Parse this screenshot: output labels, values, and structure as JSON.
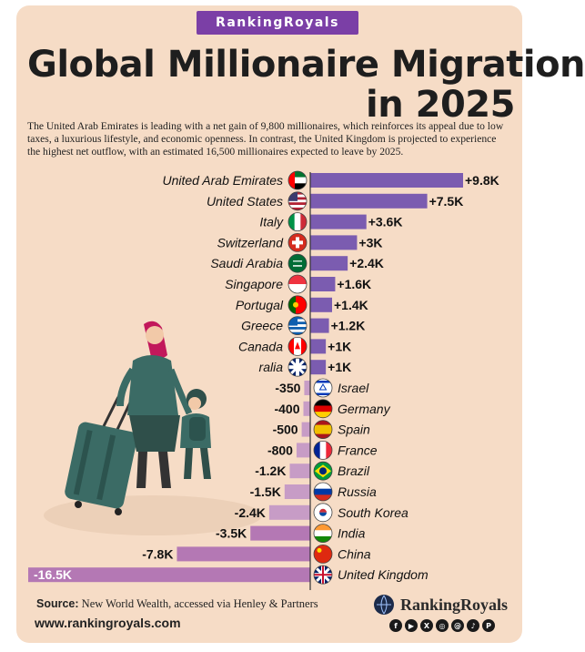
{
  "brand_badge": "RankingRoyals",
  "title_line_1": "Global Millionaire Migration",
  "title_line_2": "in 2025",
  "intro": "The United Arab Emirates is leading with a net gain of 9,800 millionaires, which reinforces its appeal due to low taxes, a luxurious lifestyle, and economic openness. In contrast, the United Kingdom is projected to experience the highest net outflow, with an estimated 16,500 millionaires expected to leave by 2025.",
  "chart_data": {
    "type": "bar",
    "orientation": "horizontal",
    "title": "Global Millionaire Migration in 2025",
    "categories": [
      "United Arab Emirates",
      "United States",
      "Italy",
      "Switzerland",
      "Saudi Arabia",
      "Singapore",
      "Portugal",
      "Greece",
      "Canada",
      "Australia",
      "Israel",
      "Germany",
      "Spain",
      "France",
      "Brazil",
      "Russia",
      "South Korea",
      "India",
      "China",
      "United Kingdom"
    ],
    "values": [
      9800,
      7500,
      3600,
      3000,
      2400,
      1600,
      1400,
      1200,
      1000,
      1000,
      -350,
      -400,
      -500,
      -800,
      -1200,
      -1500,
      -2400,
      -3500,
      -7800,
      -16500
    ],
    "value_labels": [
      "+9.8K",
      "+7.5K",
      "+3.6K",
      "+3K",
      "+2.4K",
      "+1.6K",
      "+1.4K",
      "+1.2K",
      "+1K",
      "+1K",
      "-350",
      "-400",
      "-500",
      "-800",
      "-1.2K",
      "-1.5K",
      "-2.4K",
      "-3.5K",
      "-7.8K",
      "-16.5K"
    ],
    "country_labels_shown": [
      "United Arab Emirates",
      "United States",
      "Italy",
      "Switzerland",
      "Saudi Arabia",
      "Singapore",
      "Portugal",
      "Greece",
      "Canada",
      "ralia",
      "Israel",
      "Germany",
      "Spain",
      "France",
      "Brazil",
      "Russia",
      "South Korea",
      "India",
      "China",
      "United Kingdom"
    ],
    "colors": {
      "positive": "#7b5cb0",
      "negative": "#c79cc6",
      "negative_large": "#b478b4"
    },
    "grid": false,
    "legend": "none"
  },
  "footer": {
    "source_label": "Source:",
    "source_text": "New World Wealth, accessed via Henley & Partners",
    "url": "www.rankingroyals.com",
    "brand": "RankingRoyals",
    "social_icons": [
      "facebook-icon",
      "youtube-icon",
      "x-icon",
      "instagram-icon",
      "threads-icon",
      "tiktok-icon",
      "pinterest-icon"
    ]
  }
}
